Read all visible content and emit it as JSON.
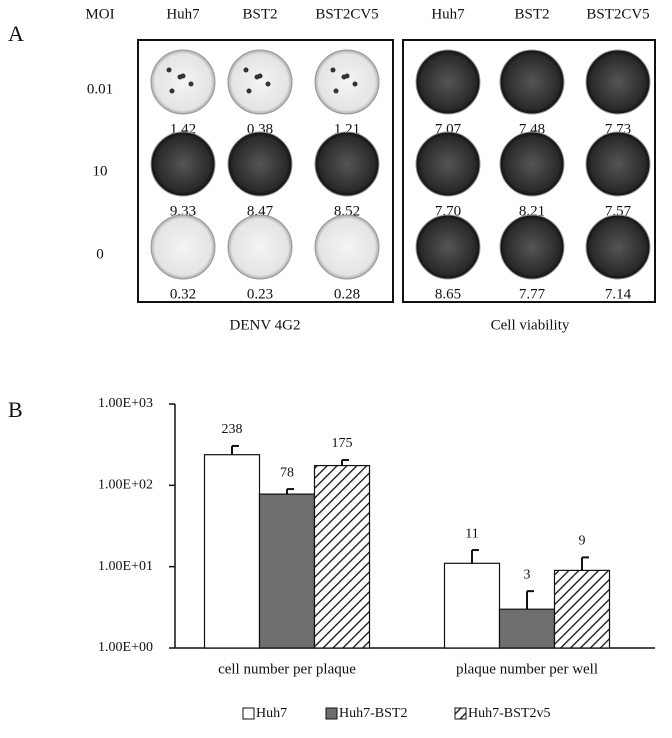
{
  "panel_a": {
    "label": "A",
    "header": [
      "MOI",
      "Huh7",
      "BST2",
      "BST2CV5",
      "Huh7",
      "BST2",
      "BST2CV5"
    ],
    "rows": [
      "0.01",
      "10",
      "0"
    ],
    "groups": [
      {
        "caption": "DENV 4G2",
        "values": [
          [
            "1.42",
            "0.38",
            "1.21"
          ],
          [
            "9.33",
            "8.47",
            "8.52"
          ],
          [
            "0.32",
            "0.23",
            "0.28"
          ]
        ]
      },
      {
        "caption": "Cell viability",
        "values": [
          [
            "7.07",
            "7.48",
            "7.73"
          ],
          [
            "7.70",
            "8.21",
            "7.57"
          ],
          [
            "8.65",
            "7.77",
            "7.14"
          ]
        ]
      }
    ]
  },
  "chart_data": {
    "type": "bar",
    "panel_label": "B",
    "log_scale": true,
    "categories": [
      "cell number per plaque",
      "plaque number per well"
    ],
    "series": [
      {
        "name": "Huh7",
        "color": "#ffffff",
        "values": [
          238,
          11
        ],
        "errors": [
          67,
          5
        ]
      },
      {
        "name": "Huh7-BST2",
        "color": "#6e6e6e",
        "values": [
          78,
          3
        ],
        "errors": [
          12,
          2
        ]
      },
      {
        "name": "Huh7-BST2v5",
        "color": "hatch",
        "values": [
          175,
          9
        ],
        "errors": [
          30,
          4
        ]
      }
    ],
    "ylim": [
      1,
      1000
    ],
    "yticks": [
      {
        "value": 1,
        "label": "1.00E+00"
      },
      {
        "value": 10,
        "label": "1.00E+01"
      },
      {
        "value": 100,
        "label": "1.00E+02"
      },
      {
        "value": 1000,
        "label": "1.00E+03"
      }
    ],
    "legend": "bottom"
  }
}
